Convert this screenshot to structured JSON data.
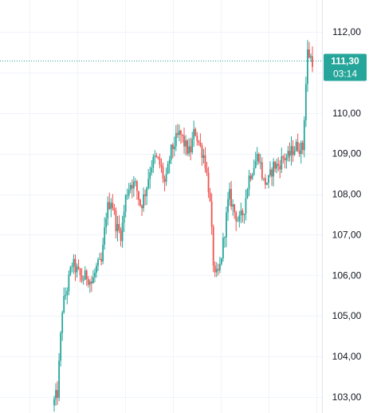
{
  "chart_data": {
    "type": "candlestick",
    "title": "",
    "xlabel": "",
    "ylabel": "",
    "ylim": [
      102.6,
      112.6
    ],
    "grid": true,
    "y_ticks": [
      {
        "value": 112,
        "label": "112,00"
      },
      {
        "value": 111,
        "label": "111,00"
      },
      {
        "value": 110,
        "label": "110,00"
      },
      {
        "value": 109,
        "label": "109,00"
      },
      {
        "value": 108,
        "label": "108,00"
      },
      {
        "value": 107,
        "label": "107,00"
      },
      {
        "value": 106,
        "label": "106,00"
      },
      {
        "value": 105,
        "label": "105,00"
      },
      {
        "value": 104,
        "label": "104,00"
      },
      {
        "value": 103,
        "label": "103,00"
      }
    ],
    "current_price": {
      "value": 111.3,
      "label": "111,30",
      "countdown": "03:14"
    },
    "colors": {
      "up": "#26a69a",
      "down": "#ef5350",
      "badge": "#26a69a",
      "price_line": "#26a69a",
      "grid": "#f0f3fa"
    },
    "price_path": [
      [
        0,
        102.8
      ],
      [
        1,
        103.1
      ],
      [
        2,
        105.2
      ],
      [
        3,
        105.7
      ],
      [
        4,
        106.3
      ],
      [
        5,
        106.1
      ],
      [
        6,
        105.9
      ],
      [
        7,
        106.0
      ],
      [
        8,
        105.8
      ],
      [
        9,
        106.2
      ],
      [
        10,
        106.3
      ],
      [
        11,
        107.6
      ],
      [
        12,
        107.9
      ],
      [
        13,
        107.2
      ],
      [
        14,
        107.0
      ],
      [
        15,
        108.0
      ],
      [
        16,
        108.3
      ],
      [
        17,
        108.2
      ],
      [
        18,
        107.7
      ],
      [
        19,
        108.1
      ],
      [
        20,
        108.7
      ],
      [
        21,
        108.9
      ],
      [
        22,
        108.7
      ],
      [
        23,
        108.2
      ],
      [
        24,
        109.0
      ],
      [
        25,
        109.3
      ],
      [
        26,
        109.5
      ],
      [
        27,
        109.2
      ],
      [
        28,
        109.0
      ],
      [
        29,
        109.6
      ],
      [
        30,
        109.2
      ],
      [
        31,
        108.9
      ],
      [
        32,
        108.0
      ],
      [
        33,
        105.9
      ],
      [
        34,
        106.1
      ],
      [
        35,
        107.0
      ],
      [
        36,
        108.0
      ],
      [
        37,
        107.6
      ],
      [
        38,
        107.3
      ],
      [
        39,
        107.6
      ],
      [
        40,
        108.4
      ],
      [
        41,
        108.7
      ],
      [
        42,
        109.0
      ],
      [
        43,
        108.3
      ],
      [
        44,
        108.3
      ],
      [
        45,
        108.7
      ],
      [
        46,
        108.7
      ],
      [
        47,
        108.9
      ],
      [
        48,
        108.9
      ],
      [
        49,
        109.1
      ],
      [
        50,
        109.2
      ],
      [
        51,
        109.1
      ],
      [
        52,
        111.5
      ],
      [
        53,
        111.3
      ]
    ]
  }
}
